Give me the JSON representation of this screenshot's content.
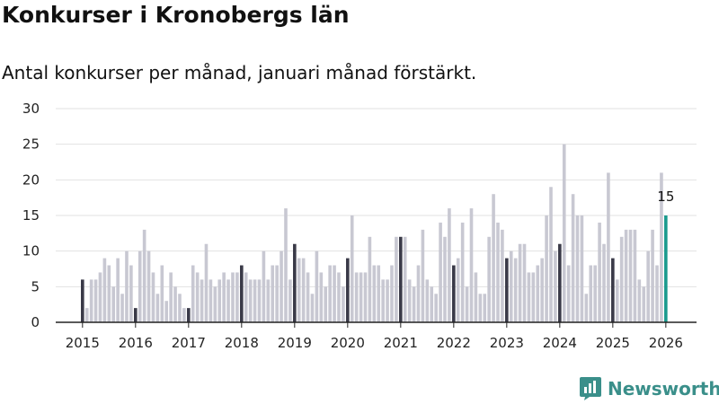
{
  "chart_data": {
    "type": "bar",
    "title": "Konkurser i Kronobergs län",
    "subtitle": "Antal konkurser per månad, januari månad förstärkt.",
    "xlabel": "",
    "ylabel": "",
    "ylim": [
      0,
      30
    ],
    "y_ticks": [
      "0",
      "5",
      "10",
      "15",
      "20",
      "25",
      "30"
    ],
    "x_ticks": [
      "2015",
      "2016",
      "2017",
      "2018",
      "2019",
      "2020",
      "2021",
      "2022",
      "2023",
      "2024",
      "2025",
      "2026"
    ],
    "start": "2015-01",
    "values": [
      6,
      2,
      6,
      6,
      7,
      9,
      8,
      5,
      9,
      4,
      10,
      8,
      2,
      10,
      13,
      10,
      7,
      4,
      8,
      3,
      7,
      5,
      4,
      2,
      2,
      8,
      7,
      6,
      11,
      6,
      5,
      6,
      7,
      6,
      7,
      7,
      8,
      7,
      6,
      6,
      6,
      10,
      6,
      8,
      8,
      10,
      16,
      6,
      11,
      9,
      9,
      7,
      4,
      10,
      7,
      5,
      8,
      8,
      7,
      5,
      9,
      15,
      7,
      7,
      7,
      12,
      8,
      8,
      6,
      6,
      8,
      12,
      12,
      12,
      6,
      5,
      8,
      13,
      6,
      5,
      4,
      14,
      12,
      16,
      8,
      9,
      14,
      5,
      16,
      7,
      4,
      4,
      12,
      18,
      14,
      13,
      9,
      10,
      9,
      11,
      11,
      7,
      7,
      8,
      9,
      15,
      19,
      10,
      11,
      25,
      8,
      18,
      15,
      15,
      4,
      8,
      8,
      14,
      11,
      21,
      9,
      6,
      12,
      13,
      13,
      13,
      6,
      5,
      10,
      13,
      8,
      21,
      15
    ],
    "highlight_rule": "January bars emphasized; latest month in accent color",
    "latest_label": "15",
    "colors": {
      "regular": "#c8c8d2",
      "january": "#3a3a48",
      "latest": "#1a9a8e",
      "grid": "#e2e2e2",
      "axis": "#222222"
    }
  },
  "brand": {
    "name": "Newsworthy",
    "logo_icon": "bar-chart-icon",
    "color": "#3a8f8a"
  }
}
